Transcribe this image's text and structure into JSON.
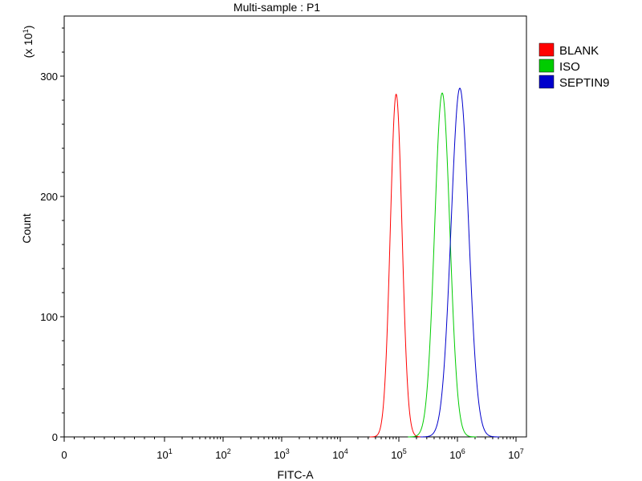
{
  "chart_data": {
    "type": "line",
    "title": "Multi-sample : P1",
    "xlabel": "FITC-A",
    "ylabel": "Count",
    "y_multiplier_label": "(x 10",
    "y_multiplier_exp": "1",
    "y_multiplier_close": ")",
    "x_scale": "log",
    "xlim": [
      0,
      10000000
    ],
    "ylim": [
      0,
      350
    ],
    "x_ticks": [
      {
        "value": 0,
        "base": "0",
        "exp": ""
      },
      {
        "value": 10,
        "base": "10",
        "exp": "1"
      },
      {
        "value": 100,
        "base": "10",
        "exp": "2"
      },
      {
        "value": 1000,
        "base": "10",
        "exp": "3"
      },
      {
        "value": 10000,
        "base": "10",
        "exp": "4"
      },
      {
        "value": 100000,
        "base": "10",
        "exp": "5"
      },
      {
        "value": 1000000,
        "base": "10",
        "exp": "6"
      },
      {
        "value": 10000000,
        "base": "10",
        "exp": "7"
      }
    ],
    "y_ticks": [
      0,
      100,
      200,
      300
    ],
    "legend_position": "right",
    "series": [
      {
        "name": "BLANK",
        "color": "#ff0000",
        "peak_x": 90000,
        "peak_y": 285,
        "log_sigma": 0.1
      },
      {
        "name": "ISO",
        "color": "#00cc00",
        "peak_x": 550000,
        "peak_y": 286,
        "log_sigma": 0.13
      },
      {
        "name": "SEPTIN9",
        "color": "#0000cc",
        "peak_x": 1100000,
        "peak_y": 290,
        "log_sigma": 0.15
      }
    ]
  }
}
